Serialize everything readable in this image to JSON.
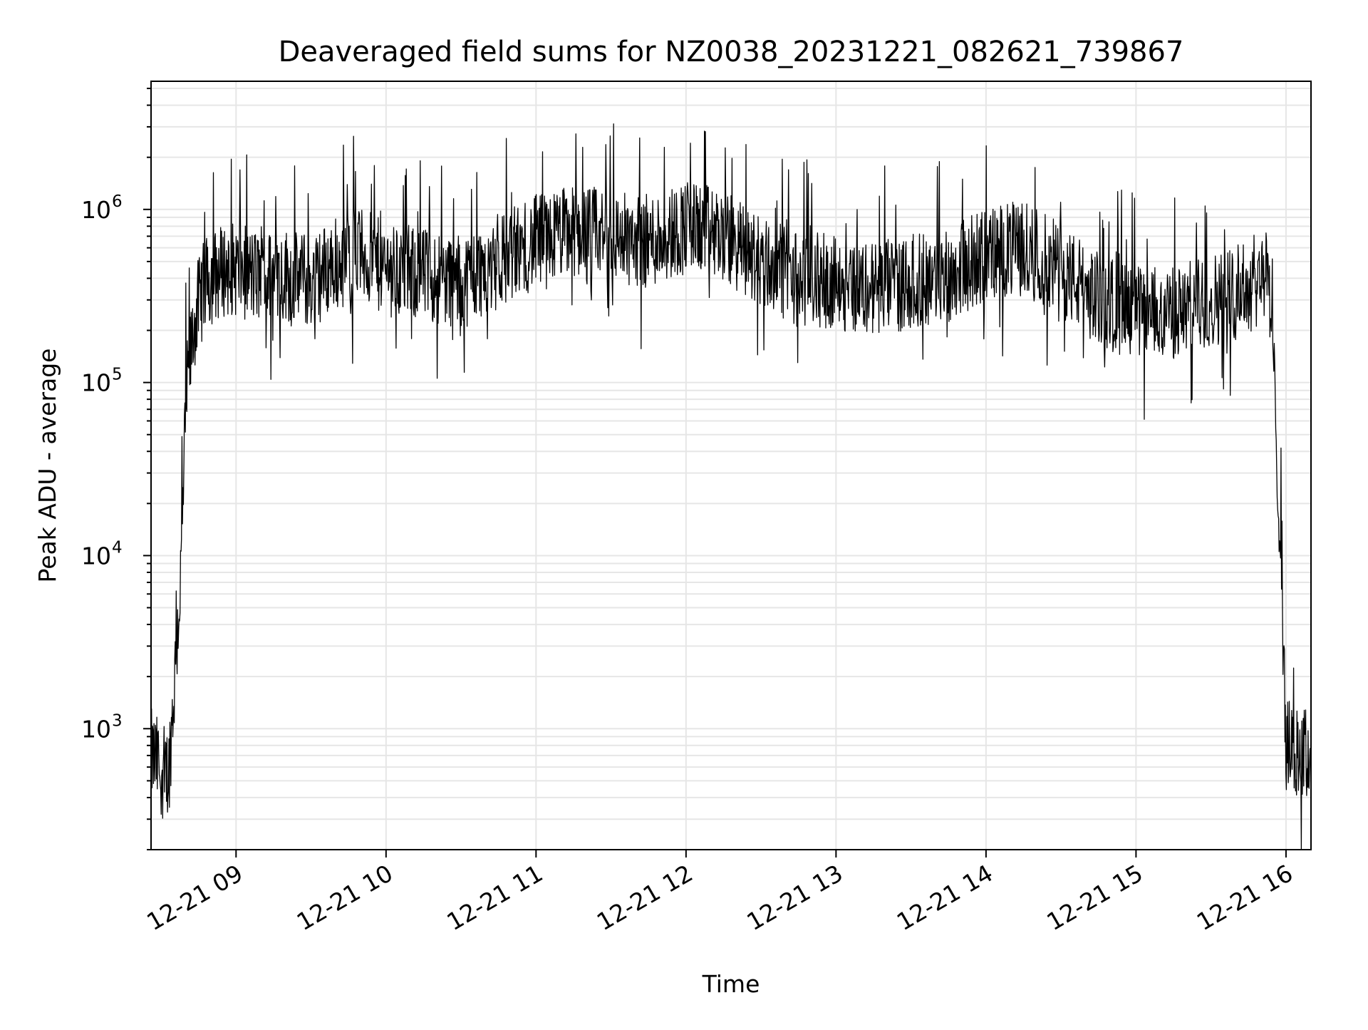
{
  "chart_data": {
    "type": "line",
    "title": "Deaveraged field sums for NZ0038_20231221_082621_739867",
    "xlabel": "Time",
    "ylabel": "Peak ADU - average",
    "yscale": "log",
    "ylim": [
      200,
      5500000
    ],
    "xlim": [
      "2023-12-21 08:26",
      "2023-12-21 16:10"
    ],
    "grid": true,
    "legend": "none",
    "line_color": "#000000",
    "grid_color": "#e6e6e6",
    "x_ticks": [
      {
        "t": "2023-12-21 09:00",
        "label": "12-21 09"
      },
      {
        "t": "2023-12-21 10:00",
        "label": "12-21 10"
      },
      {
        "t": "2023-12-21 11:00",
        "label": "12-21 11"
      },
      {
        "t": "2023-12-21 12:00",
        "label": "12-21 12"
      },
      {
        "t": "2023-12-21 13:00",
        "label": "12-21 13"
      },
      {
        "t": "2023-12-21 14:00",
        "label": "12-21 14"
      },
      {
        "t": "2023-12-21 15:00",
        "label": "12-21 15"
      },
      {
        "t": "2023-12-21 16:00",
        "label": "12-21 16"
      }
    ],
    "y_ticks": [
      {
        "value": 1000,
        "base": "10",
        "exp": "3"
      },
      {
        "value": 10000,
        "base": "10",
        "exp": "4"
      },
      {
        "value": 100000,
        "base": "10",
        "exp": "5"
      },
      {
        "value": 1000000,
        "base": "10",
        "exp": "6"
      }
    ],
    "series": [
      {
        "x": [
          "2023-12-21 08:26",
          "2023-12-21 08:30",
          "2023-12-21 08:33",
          "2023-12-21 08:35",
          "2023-12-21 08:38",
          "2023-12-21 08:40",
          "2023-12-21 08:42",
          "2023-12-21 08:44",
          "2023-12-21 08:47",
          "2023-12-21 08:50",
          "2023-12-21 08:55",
          "2023-12-21 09:00",
          "2023-12-21 09:10",
          "2023-12-21 09:20",
          "2023-12-21 09:30",
          "2023-12-21 09:40",
          "2023-12-21 09:50",
          "2023-12-21 10:00",
          "2023-12-21 10:15",
          "2023-12-21 10:30",
          "2023-12-21 10:45",
          "2023-12-21 11:00",
          "2023-12-21 11:15",
          "2023-12-21 11:30",
          "2023-12-21 11:45",
          "2023-12-21 12:00",
          "2023-12-21 12:15",
          "2023-12-21 12:30",
          "2023-12-21 12:45",
          "2023-12-21 13:00",
          "2023-12-21 13:15",
          "2023-12-21 13:30",
          "2023-12-21 13:45",
          "2023-12-21 14:00",
          "2023-12-21 14:15",
          "2023-12-21 14:30",
          "2023-12-21 14:45",
          "2023-12-21 15:00",
          "2023-12-21 15:15",
          "2023-12-21 15:30",
          "2023-12-21 15:45",
          "2023-12-21 15:50",
          "2023-12-21 15:53",
          "2023-12-21 15:55",
          "2023-12-21 15:57",
          "2023-12-21 15:59",
          "2023-12-21 16:00",
          "2023-12-21 16:05",
          "2023-12-21 16:10"
        ],
        "y": [
          700,
          600,
          550,
          1500,
          8000,
          80000,
          150000,
          250000,
          350000,
          400000,
          450000,
          450000,
          400000,
          420000,
          380000,
          500000,
          550000,
          450000,
          420000,
          380000,
          500000,
          650000,
          750000,
          700000,
          650000,
          800000,
          700000,
          500000,
          400000,
          380000,
          350000,
          380000,
          420000,
          550000,
          600000,
          450000,
          300000,
          250000,
          250000,
          300000,
          350000,
          420000,
          400000,
          120000,
          25000,
          3000,
          800,
          700,
          700
        ]
      }
    ]
  }
}
